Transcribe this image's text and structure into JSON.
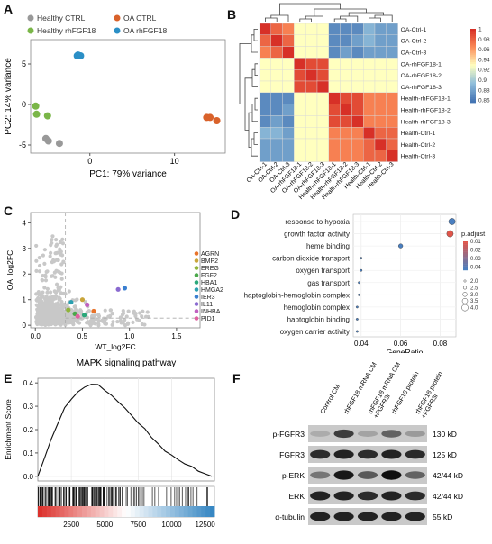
{
  "panels": {
    "a": {
      "label": "A",
      "legend": [
        "Healthy CTRL",
        "Healthy rhFGF18",
        "OA CTRL",
        "OA rhFGF18"
      ],
      "colors": [
        "#999999",
        "#7ab648",
        "#d9622b",
        "#2b8fc6"
      ],
      "xlabel": "PC1: 79% variance",
      "ylabel": "PC2: 14% variance",
      "xticks": [
        "0",
        "10"
      ],
      "yticks": [
        "5",
        "0",
        "-5"
      ]
    },
    "b": {
      "label": "B",
      "rows": [
        "OA-Ctrl-1",
        "OA-Ctrl-2",
        "OA-Ctrl-3",
        "OA-rhFGF18-1",
        "OA-rhFGF18-2",
        "OA-rhFGF18-3",
        "Health-rhFGF18-1",
        "Health-rhFGF18-2",
        "Health-rhFGF18-3",
        "Health-Ctrl-1",
        "Health-Ctrl-2",
        "Health-Ctrl-3"
      ],
      "cols": [
        "OA-Ctrl-1",
        "OA-Ctrl-2",
        "OA-Ctrl-3",
        "OA-rhFGF18-1",
        "OA-rhFGF18-2",
        "OA-rhFGF18-3",
        "Health-rhFGF18-1",
        "Health-rhFGF18-2",
        "Health-rhFGF18-3",
        "Health-Ctrl-1",
        "Health-Ctrl-2",
        "Health-Ctrl-3"
      ],
      "scale": [
        "1",
        "0.98",
        "0.96",
        "0.94",
        "0.92",
        "0.9",
        "0.88",
        "0.86"
      ]
    },
    "c": {
      "label": "C",
      "xlabel": "WT_log2FC",
      "ylabel": "OA_log2FC",
      "xticks": [
        "0.0",
        "0.5",
        "1.0",
        "1.5"
      ],
      "yticks": [
        "0",
        "1",
        "2",
        "3",
        "4"
      ],
      "genes": [
        "AGRN",
        "BMP2",
        "EREG",
        "FGF2",
        "HBA1",
        "HMGA2",
        "IER3",
        "IL11",
        "INHBA",
        "PID1"
      ],
      "gene_colors": [
        "#e8732a",
        "#c9a53a",
        "#8fb33a",
        "#4aa84a",
        "#2aa87a",
        "#2a9fb0",
        "#3a7fd0",
        "#8a6ad0",
        "#c060c0",
        "#e060a0"
      ]
    },
    "d": {
      "label": "D",
      "terms": [
        "response to hypoxia",
        "growth factor activity",
        "heme binding",
        "carbon dioxide transport",
        "oxygen transport",
        "gas transport",
        "haptoglobin-hemoglobin complex",
        "hemoglobin complex",
        "haptoglobin binding",
        "oxygen carrier activity"
      ],
      "xlabel": "GeneRatio",
      "xticks": [
        "0.04",
        "0.06",
        "0.08"
      ],
      "padj_title": "p.adjust",
      "padj_ticks": [
        "0.01",
        "0.02",
        "0.03",
        "0.04"
      ],
      "size_title": "",
      "size_ticks": [
        "2.0",
        "2.5",
        "3.0",
        "3.5",
        "4.0"
      ]
    },
    "e": {
      "label": "E",
      "title": "MAPK signaling pathway",
      "ylabel": "Enrichment Score",
      "yticks": [
        "0.4",
        "0.3",
        "0.2",
        "0.1",
        "0.0"
      ],
      "xticks": [
        "2500",
        "5000",
        "7500",
        "10000",
        "12500"
      ]
    },
    "f": {
      "label": "F",
      "lanes": [
        "Control CM",
        "rhFGF18 mRNA CM",
        "rhFGF18 mRNA CM +FGFR3i",
        "rhFGF18 protein",
        "rhFGF18 protein +FGFR3i"
      ],
      "bands": [
        {
          "name": "p-FGFR3",
          "size": "130 kD"
        },
        {
          "name": "FGFR3",
          "size": "125 kD"
        },
        {
          "name": "p-ERK",
          "size": "42/44 kD"
        },
        {
          "name": "ERK",
          "size": "42/44 kD"
        },
        {
          "name": "α-tubulin",
          "size": "55 kD"
        }
      ]
    }
  },
  "chart_data": [
    {
      "type": "scatter",
      "series": [
        {
          "name": "Healthy CTRL",
          "x": [
            -5.2,
            -4.9,
            -3.6
          ],
          "y": [
            -4.2,
            -4.5,
            -4.8
          ]
        },
        {
          "name": "Healthy rhFGF18",
          "x": [
            -6.4,
            -6.3,
            -5.0
          ],
          "y": [
            -0.2,
            -1.2,
            -1.4
          ]
        },
        {
          "name": "OA CTRL",
          "x": [
            13.8,
            14.2,
            15.0
          ],
          "y": [
            -1.6,
            -1.6,
            -2.0
          ]
        },
        {
          "name": "OA rhFGF18",
          "x": [
            -1.5,
            -1.1,
            -1.4
          ],
          "y": [
            6.0,
            6.0,
            6.1
          ]
        }
      ],
      "xlabel": "PC1: 79% variance",
      "ylabel": "PC2: 14% variance",
      "xlim": [
        -7,
        16
      ],
      "ylim": [
        -6,
        8
      ]
    },
    {
      "type": "heatmap",
      "groups": [
        "OA-Ctrl",
        "OA-rhFGF18",
        "Health-rhFGF18",
        "Health-Ctrl"
      ],
      "values": [
        [
          1.0,
          0.98,
          0.97,
          0.93,
          0.93,
          0.93,
          0.87,
          0.87,
          0.87,
          0.89,
          0.88,
          0.88
        ],
        [
          0.98,
          1.0,
          0.98,
          0.93,
          0.93,
          0.93,
          0.87,
          0.87,
          0.88,
          0.89,
          0.88,
          0.88
        ],
        [
          0.97,
          0.98,
          1.0,
          0.93,
          0.93,
          0.93,
          0.87,
          0.88,
          0.87,
          0.88,
          0.88,
          0.88
        ],
        [
          0.93,
          0.93,
          0.93,
          1.0,
          0.99,
          0.99,
          0.93,
          0.93,
          0.93,
          0.93,
          0.93,
          0.93
        ],
        [
          0.93,
          0.93,
          0.93,
          0.99,
          1.0,
          0.99,
          0.93,
          0.93,
          0.93,
          0.93,
          0.93,
          0.93
        ],
        [
          0.93,
          0.93,
          0.93,
          0.99,
          0.99,
          1.0,
          0.93,
          0.93,
          0.93,
          0.93,
          0.93,
          0.93
        ],
        [
          0.87,
          0.87,
          0.87,
          0.93,
          0.93,
          0.93,
          1.0,
          0.99,
          0.99,
          0.97,
          0.97,
          0.97
        ],
        [
          0.87,
          0.87,
          0.88,
          0.93,
          0.93,
          0.93,
          0.99,
          1.0,
          0.99,
          0.97,
          0.97,
          0.97
        ],
        [
          0.87,
          0.88,
          0.87,
          0.93,
          0.93,
          0.93,
          0.99,
          0.99,
          1.0,
          0.97,
          0.97,
          0.97
        ],
        [
          0.89,
          0.89,
          0.88,
          0.93,
          0.93,
          0.93,
          0.97,
          0.97,
          0.97,
          1.0,
          0.98,
          0.98
        ],
        [
          0.88,
          0.88,
          0.88,
          0.93,
          0.93,
          0.93,
          0.97,
          0.97,
          0.97,
          0.98,
          1.0,
          0.98
        ],
        [
          0.88,
          0.88,
          0.88,
          0.93,
          0.93,
          0.93,
          0.97,
          0.97,
          0.97,
          0.98,
          0.98,
          1.0
        ]
      ],
      "scale_range": [
        0.86,
        1.0
      ]
    },
    {
      "type": "scatter",
      "highlight": [
        {
          "gene": "AGRN",
          "x": 0.62,
          "y": 0.55
        },
        {
          "gene": "BMP2",
          "x": 0.5,
          "y": 1.0
        },
        {
          "gene": "EREG",
          "x": 0.35,
          "y": 0.6
        },
        {
          "gene": "FGF2",
          "x": 0.42,
          "y": 0.45
        },
        {
          "gene": "HBA1",
          "x": 0.52,
          "y": 0.4
        },
        {
          "gene": "HMGA2",
          "x": 0.38,
          "y": 0.9
        },
        {
          "gene": "IER3",
          "x": 0.95,
          "y": 1.45
        },
        {
          "gene": "IL11",
          "x": 0.88,
          "y": 1.4
        },
        {
          "gene": "INHBA",
          "x": 0.55,
          "y": 0.8
        },
        {
          "gene": "PID1",
          "x": 0.45,
          "y": 0.35
        }
      ],
      "xlabel": "WT_log2FC",
      "ylabel": "OA_log2FC",
      "xlim": [
        -0.05,
        1.75
      ],
      "ylim": [
        -0.1,
        4.4
      ]
    },
    {
      "type": "scatter",
      "terms": [
        "response to hypoxia",
        "growth factor activity",
        "heme binding",
        "carbon dioxide transport",
        "oxygen transport",
        "gas transport",
        "haptoglobin-hemoglobin complex",
        "hemoglobin complex",
        "haptoglobin binding",
        "oxygen carrier activity"
      ],
      "gene_ratio": [
        0.086,
        0.085,
        0.06,
        0.04,
        0.04,
        0.039,
        0.039,
        0.038,
        0.038,
        0.038
      ],
      "count": [
        4,
        4,
        3,
        2,
        2,
        2,
        2,
        2,
        2,
        2
      ],
      "p_adjust": [
        0.045,
        0.01,
        0.045,
        0.045,
        0.045,
        0.045,
        0.045,
        0.045,
        0.045,
        0.045
      ],
      "xlabel": "GeneRatio",
      "xlim": [
        0.036,
        0.088
      ]
    },
    {
      "type": "line",
      "title": "MAPK signaling pathway",
      "x": [
        0,
        500,
        1000,
        1500,
        2000,
        2500,
        3000,
        3500,
        4000,
        4500,
        5000,
        5500,
        6000,
        6500,
        7000,
        7500,
        8000,
        8500,
        9000,
        9500,
        10000,
        10500,
        11000,
        11500,
        12000,
        12500,
        13000
      ],
      "y": [
        0.0,
        0.08,
        0.16,
        0.23,
        0.29,
        0.33,
        0.36,
        0.38,
        0.395,
        0.39,
        0.37,
        0.35,
        0.32,
        0.29,
        0.26,
        0.23,
        0.2,
        0.17,
        0.14,
        0.11,
        0.09,
        0.07,
        0.05,
        0.04,
        0.02,
        0.01,
        0.0
      ],
      "ylabel": "Enrichment Score",
      "xlim": [
        0,
        13200
      ],
      "ylim": [
        -0.02,
        0.42
      ]
    }
  ]
}
